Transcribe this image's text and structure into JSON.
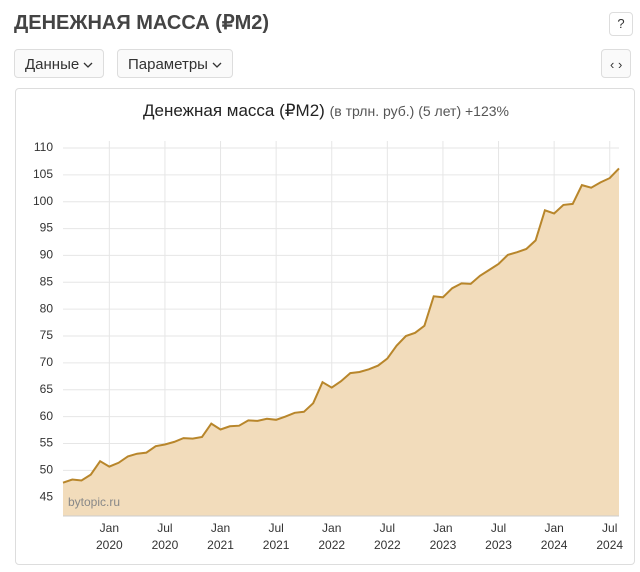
{
  "header": {
    "title": "ДЕНЕЖНАЯ МАССА (₽М2)",
    "help": "?"
  },
  "toolbar": {
    "buttons": [
      "Данные",
      "Параметры"
    ],
    "nav": "‹ ›"
  },
  "chart_data": {
    "type": "area",
    "title": "Денежная масса (₽М2)",
    "subtitle": "(в трлн. руб.) (5 лет) +123%",
    "watermark": "bytopic.ru",
    "x": [
      "2019-08",
      "2019-09",
      "2019-10",
      "2019-11",
      "2019-12",
      "2020-01",
      "2020-02",
      "2020-03",
      "2020-04",
      "2020-05",
      "2020-06",
      "2020-07",
      "2020-08",
      "2020-09",
      "2020-10",
      "2020-11",
      "2020-12",
      "2021-01",
      "2021-02",
      "2021-03",
      "2021-04",
      "2021-05",
      "2021-06",
      "2021-07",
      "2021-08",
      "2021-09",
      "2021-10",
      "2021-11",
      "2021-12",
      "2022-01",
      "2022-02",
      "2022-03",
      "2022-04",
      "2022-05",
      "2022-06",
      "2022-07",
      "2022-08",
      "2022-09",
      "2022-10",
      "2022-11",
      "2022-12",
      "2023-01",
      "2023-02",
      "2023-03",
      "2023-04",
      "2023-05",
      "2023-06",
      "2023-07",
      "2023-08",
      "2023-09",
      "2023-10",
      "2023-11",
      "2023-12",
      "2024-01",
      "2024-02",
      "2024-03",
      "2024-04",
      "2024-05",
      "2024-06",
      "2024-07",
      "2024-08"
    ],
    "values": [
      47.7,
      48.3,
      48.1,
      49.2,
      51.7,
      50.7,
      51.4,
      52.6,
      53.1,
      53.3,
      54.5,
      54.8,
      55.3,
      56.0,
      55.9,
      56.2,
      58.7,
      57.6,
      58.2,
      58.3,
      59.3,
      59.2,
      59.6,
      59.4,
      60.0,
      60.7,
      60.9,
      62.5,
      66.4,
      65.4,
      66.6,
      68.1,
      68.3,
      68.8,
      69.5,
      70.8,
      73.2,
      75.0,
      75.6,
      76.9,
      82.4,
      82.2,
      83.9,
      84.8,
      84.7,
      86.2,
      87.3,
      88.4,
      90.1,
      90.6,
      91.2,
      92.8,
      98.4,
      97.8,
      99.4,
      99.6,
      103.1,
      102.6,
      103.6,
      104.4,
      106.2
    ],
    "color": "#b8862b",
    "fill": "#f2dcbb",
    "xlim": [
      "2019-08",
      "2024-08"
    ],
    "xticks": [
      {
        "value": "2020-01",
        "label": [
          "Jan",
          "2020"
        ]
      },
      {
        "value": "2020-07",
        "label": [
          "Jul",
          "2020"
        ]
      },
      {
        "value": "2021-01",
        "label": [
          "Jan",
          "2021"
        ]
      },
      {
        "value": "2021-07",
        "label": [
          "Jul",
          "2021"
        ]
      },
      {
        "value": "2022-01",
        "label": [
          "Jan",
          "2022"
        ]
      },
      {
        "value": "2022-07",
        "label": [
          "Jul",
          "2022"
        ]
      },
      {
        "value": "2023-01",
        "label": [
          "Jan",
          "2023"
        ]
      },
      {
        "value": "2023-07",
        "label": [
          "Jul",
          "2023"
        ]
      },
      {
        "value": "2024-01",
        "label": [
          "Jan",
          "2024"
        ]
      },
      {
        "value": "2024-07",
        "label": [
          "Jul",
          "2024"
        ]
      }
    ],
    "ylim": [
      41.5,
      111.3
    ],
    "yticks": [
      45,
      50,
      55,
      60,
      65,
      70,
      75,
      80,
      85,
      90,
      95,
      100,
      105,
      110
    ],
    "grid": true
  }
}
